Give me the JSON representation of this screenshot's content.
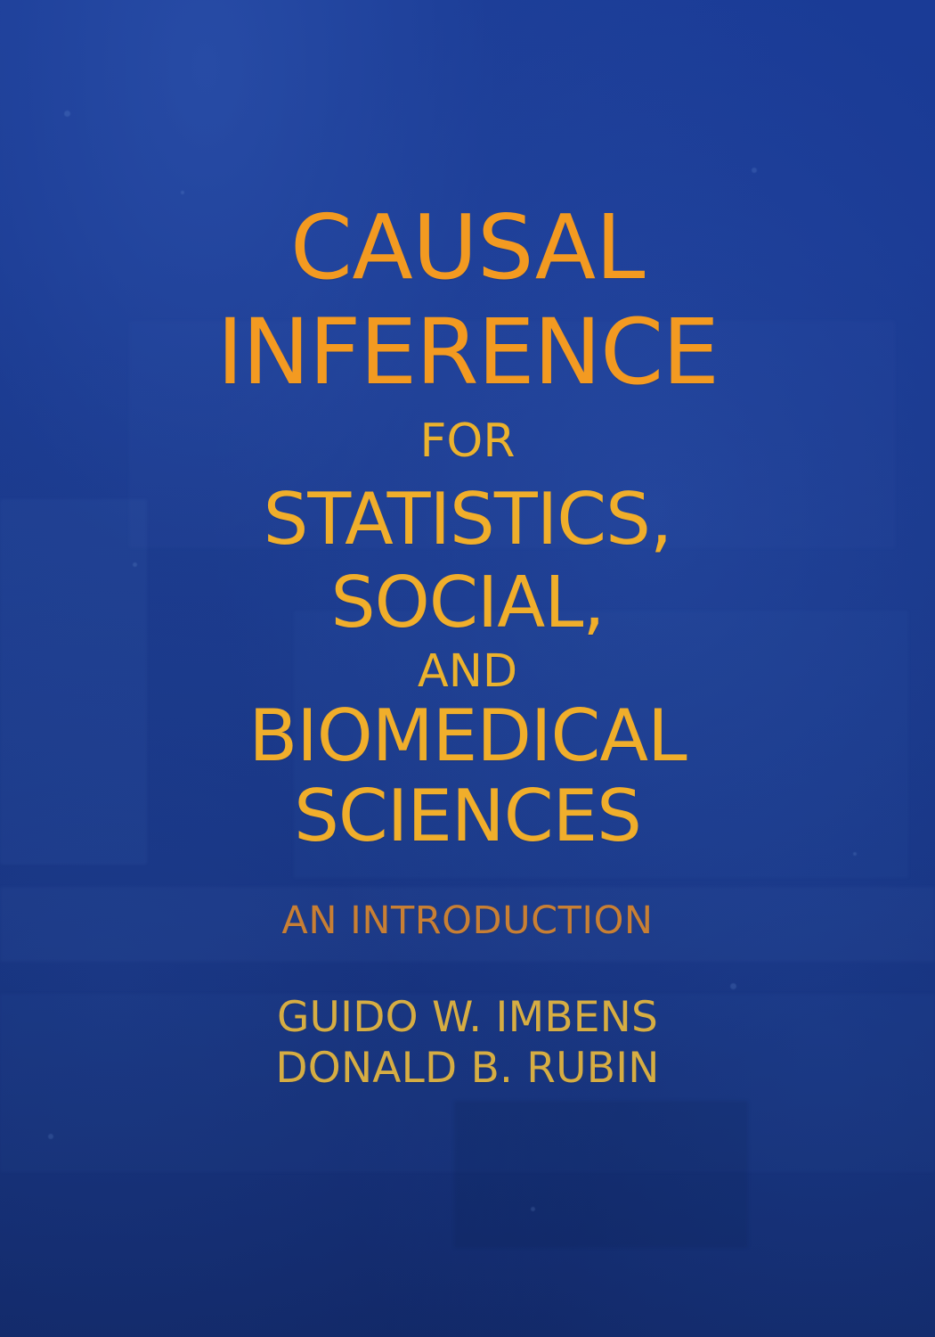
{
  "cover": {
    "title_lines": [
      "CAUSAL",
      "INFERENCE",
      "FOR",
      "STATISTICS,",
      "SOCIAL,",
      "AND",
      "BIOMEDICAL",
      "SCIENCES"
    ],
    "subtitle": "AN INTRODUCTION",
    "authors": [
      "GUIDO W. IMBENS",
      "DONALD B. RUBIN"
    ],
    "colors": {
      "background": "#183688",
      "title": "#f39a21",
      "secondary_title": "#f0ae2b",
      "subtitle": "#c87f34",
      "authors": "#d6ad43"
    }
  }
}
